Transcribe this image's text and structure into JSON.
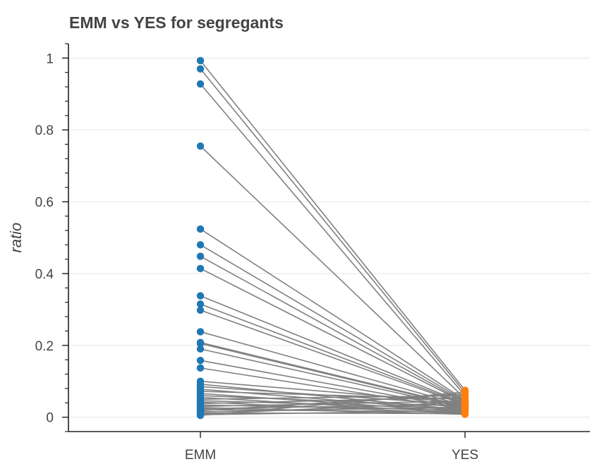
{
  "chart_data": {
    "type": "line",
    "title": "EMM vs YES for segregants",
    "xlabel": "",
    "ylabel": "ratio",
    "categories": [
      "EMM",
      "YES"
    ],
    "ylim": [
      -0.04,
      1.04
    ],
    "yticks": [
      0,
      0.2,
      0.4,
      0.6,
      0.8,
      1
    ],
    "ytick_labels": [
      "0",
      "0.2",
      "0.4",
      "0.6",
      "0.8",
      "1"
    ],
    "grid": "horizontal",
    "legend": "none",
    "colors": {
      "EMM": "#1f77b4",
      "YES": "#ff7f0e",
      "line": "#808080"
    },
    "series": [
      {
        "values": [
          0.993,
          0.075
        ]
      },
      {
        "values": [
          0.97,
          0.068
        ]
      },
      {
        "values": [
          0.928,
          0.06
        ]
      },
      {
        "values": [
          0.755,
          0.052
        ]
      },
      {
        "values": [
          0.524,
          0.048
        ]
      },
      {
        "values": [
          0.48,
          0.045
        ]
      },
      {
        "values": [
          0.448,
          0.042
        ]
      },
      {
        "values": [
          0.414,
          0.04
        ]
      },
      {
        "values": [
          0.338,
          0.038
        ]
      },
      {
        "values": [
          0.315,
          0.036
        ]
      },
      {
        "values": [
          0.298,
          0.034
        ]
      },
      {
        "values": [
          0.238,
          0.032
        ]
      },
      {
        "values": [
          0.208,
          0.03
        ]
      },
      {
        "values": [
          0.205,
          0.028
        ]
      },
      {
        "values": [
          0.19,
          0.026
        ]
      },
      {
        "values": [
          0.158,
          0.024
        ]
      },
      {
        "values": [
          0.137,
          0.022
        ]
      },
      {
        "values": [
          0.1,
          0.04
        ]
      },
      {
        "values": [
          0.092,
          0.02
        ]
      },
      {
        "values": [
          0.085,
          0.035
        ]
      },
      {
        "values": [
          0.078,
          0.018
        ]
      },
      {
        "values": [
          0.072,
          0.05
        ]
      },
      {
        "values": [
          0.066,
          0.015
        ]
      },
      {
        "values": [
          0.06,
          0.03
        ]
      },
      {
        "values": [
          0.055,
          0.012
        ]
      },
      {
        "values": [
          0.05,
          0.06
        ]
      },
      {
        "values": [
          0.046,
          0.025
        ]
      },
      {
        "values": [
          0.042,
          0.01
        ]
      },
      {
        "values": [
          0.038,
          0.055
        ]
      },
      {
        "values": [
          0.034,
          0.02
        ]
      },
      {
        "values": [
          0.03,
          0.045
        ]
      },
      {
        "values": [
          0.027,
          0.008
        ]
      },
      {
        "values": [
          0.024,
          0.035
        ]
      },
      {
        "values": [
          0.021,
          0.015
        ]
      },
      {
        "values": [
          0.018,
          0.065
        ]
      },
      {
        "values": [
          0.015,
          0.028
        ]
      },
      {
        "values": [
          0.012,
          0.01
        ]
      },
      {
        "values": [
          0.009,
          0.042
        ]
      },
      {
        "values": [
          0.007,
          0.018
        ]
      },
      {
        "values": [
          0.005,
          0.07
        ]
      }
    ]
  }
}
